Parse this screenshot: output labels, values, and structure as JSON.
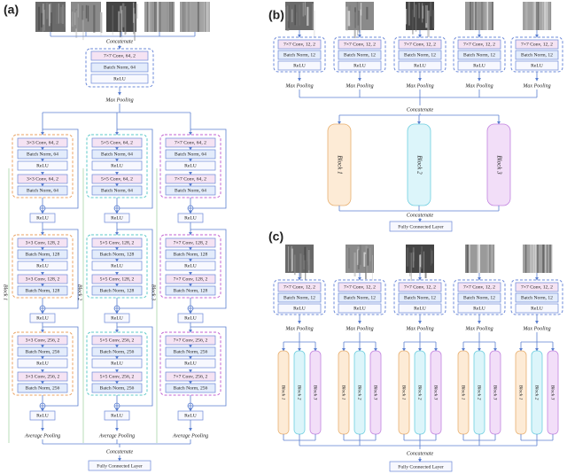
{
  "panel_a": {
    "label": "(a)",
    "concatenate_top": "Concatenate",
    "stem": [
      "7×7 Conv, 64, 2",
      "Batch Norm, 64",
      "ReLU"
    ],
    "stem_pool": "Max Pooling",
    "columns": [
      {
        "block_label": "Block 1",
        "stages": [
          {
            "layers": [
              "3×3 Conv, 64, 2",
              "Batch Norm, 64",
              "ReLU",
              "3×3 Conv, 64, 2",
              "Batch Norm, 64"
            ],
            "relu": "ReLU"
          },
          {
            "layers": [
              "3×3 Conv, 128, 2",
              "Batch Norm, 128",
              "ReLU",
              "3×3 Conv, 128, 2",
              "Batch Norm, 128"
            ],
            "relu": "ReLU"
          },
          {
            "layers": [
              "3×3 Conv, 256, 2",
              "Batch Norm, 256",
              "ReLU",
              "3×3 Conv, 256, 2",
              "Batch Norm, 256"
            ],
            "relu": "ReLU"
          }
        ],
        "pool": "Average Pooling"
      },
      {
        "block_label": "Block 2",
        "stages": [
          {
            "layers": [
              "5×5 Conv, 64, 2",
              "Batch Norm, 64",
              "ReLU",
              "5×5 Conv, 64, 2",
              "Batch Norm, 64"
            ],
            "relu": "ReLU"
          },
          {
            "layers": [
              "5×5 Conv, 128, 2",
              "Batch Norm, 128",
              "ReLU",
              "5×5 Conv, 128, 2",
              "Batch Norm, 128"
            ],
            "relu": "ReLU"
          },
          {
            "layers": [
              "5×5 Conv, 256, 2",
              "Batch Norm, 256",
              "ReLU",
              "5×5 Conv, 256, 2",
              "Batch Norm, 256"
            ],
            "relu": "ReLU"
          }
        ],
        "pool": "Average Pooling"
      },
      {
        "block_label": "Block 3",
        "stages": [
          {
            "layers": [
              "7×7 Conv, 64, 2",
              "Batch Norm, 64",
              "ReLU",
              "7×7 Conv, 64, 2",
              "Batch Norm, 64"
            ],
            "relu": "ReLU"
          },
          {
            "layers": [
              "7×7 Conv, 128, 2",
              "Batch Norm, 128",
              "ReLU",
              "7×7 Conv, 128, 2",
              "Batch Norm, 128"
            ],
            "relu": "ReLU"
          },
          {
            "layers": [
              "7×7 Conv, 256, 2",
              "Batch Norm, 256",
              "ReLU",
              "7×7 Conv, 256, 2",
              "Batch Norm, 256"
            ],
            "relu": "ReLU"
          }
        ],
        "pool": "Average Pooling"
      }
    ],
    "concatenate": "Concatenate",
    "output": "Fully Connected Layer"
  },
  "panel_b": {
    "label": "(b)",
    "branches": [
      {
        "layers": [
          "7×7 Conv, 12, 2",
          "Batch Norm, 12",
          "ReLU"
        ],
        "pool": "Max Pooling"
      },
      {
        "layers": [
          "7×7 Conv, 12, 2",
          "Batch Norm, 12",
          "ReLU"
        ],
        "pool": "Max Pooling"
      },
      {
        "layers": [
          "7×7 Conv, 12, 2",
          "Batch Norm, 12",
          "ReLU"
        ],
        "pool": "Max Pooling"
      },
      {
        "layers": [
          "7×7 Conv, 12, 2",
          "Batch Norm, 12",
          "ReLU"
        ],
        "pool": "Max Pooling"
      },
      {
        "layers": [
          "7×7 Conv, 12, 2",
          "Batch Norm, 12",
          "ReLU"
        ],
        "pool": "Max Pooling"
      }
    ],
    "concatenate": "Concatenate",
    "blocks": [
      "Block 1",
      "Block 2",
      "Block 3"
    ],
    "concatenate_bottom": "Concatenate",
    "output": "Fully Connected Layer"
  },
  "panel_c": {
    "label": "(c)",
    "branches": [
      {
        "layers": [
          "7×7 Conv, 12, 2",
          "Batch Norm, 12",
          "ReLU"
        ],
        "pool": "Max Pooling",
        "blocks": [
          "Block 1",
          "Block 2",
          "Block 3"
        ]
      },
      {
        "layers": [
          "7×7 Conv, 12, 2",
          "Batch Norm, 12",
          "ReLU"
        ],
        "pool": "Max Pooling",
        "blocks": [
          "Block 1",
          "Block 2",
          "Block 3"
        ]
      },
      {
        "layers": [
          "7×7 Conv, 12, 2",
          "Batch Norm, 12",
          "ReLU"
        ],
        "pool": "Max Pooling",
        "blocks": [
          "Block 1",
          "Block 2",
          "Block 3"
        ]
      },
      {
        "layers": [
          "7×7 Conv, 12, 2",
          "Batch Norm, 12",
          "ReLU"
        ],
        "pool": "Max Pooling",
        "blocks": [
          "Block 1",
          "Block 2",
          "Block 3"
        ]
      },
      {
        "layers": [
          "7×7 Conv, 12, 2",
          "Batch Norm, 12",
          "ReLU"
        ],
        "pool": "Max Pooling",
        "blocks": [
          "Block 1",
          "Block 2",
          "Block 3"
        ]
      }
    ],
    "concatenate": "Concatenate",
    "output": "Fully Connected Layer"
  }
}
